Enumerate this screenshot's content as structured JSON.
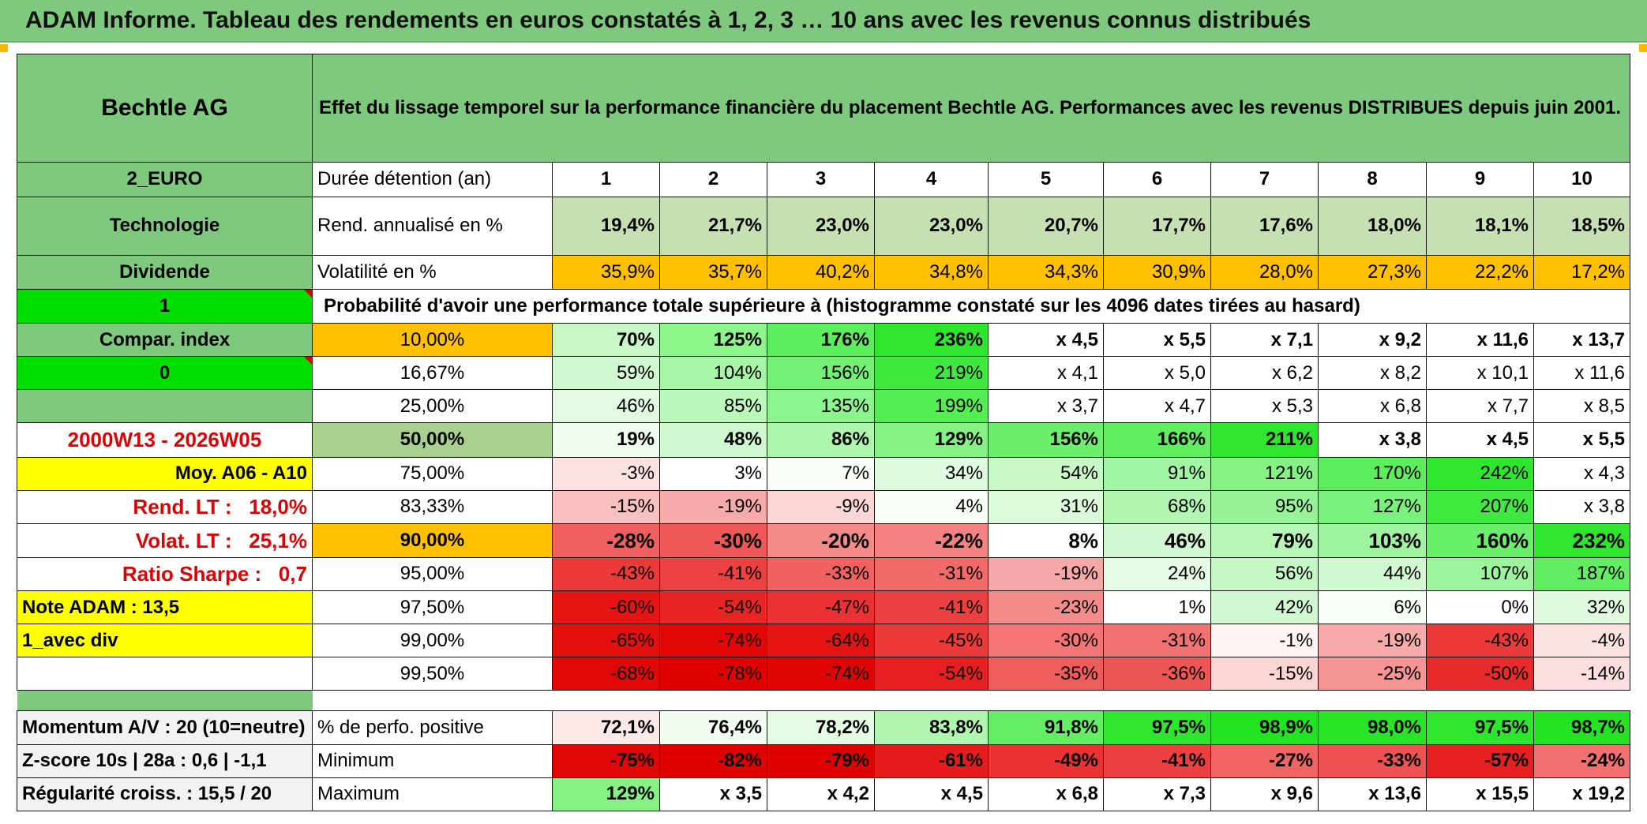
{
  "title": "ADAM Informe. Tableau des rendements en euros constatés à 1, 2, 3 … 10 ans avec les revenus connus distribués",
  "header": {
    "asset_name": "Bechtle AG",
    "description": "Effet du lissage temporel sur la performance financière du placement Bechtle AG. Performances avec les revenus DISTRIBUES depuis juin 2001."
  },
  "left_panel": {
    "currency": "2_EURO",
    "sector": "Technologie",
    "income_type": "Dividende",
    "index_flag": "1",
    "compar_index": "Compar. index",
    "compar_value": "0",
    "period": "2000W13 - 2026W05",
    "moy": "Moy. A06 - A10",
    "rend_lt_label": "Rend. LT :",
    "rend_lt_value": "18,0%",
    "volat_lt_label": "Volat. LT :",
    "volat_lt_value": "25,1%",
    "sharpe_label": "Ratio Sharpe :",
    "sharpe_value": "0,7",
    "note": "Note ADAM : 13,5",
    "mode": "1_avec div",
    "momentum": "Momentum A/V : 20 (10=neutre)",
    "zscore": "Z-score 10s | 28a : 0,6 | -1,1",
    "regularite": "Régularité croiss. : 15,5 / 20"
  },
  "row_labels": {
    "duration": "Durée détention (an)",
    "annualized": "Rend. annualisé en %",
    "volatility": "Volatilité en %",
    "probability": "Probabilité d'avoir une performance totale supérieure à (histogramme constaté sur les 4096 dates tirées au hasard)",
    "positive": "% de perfo. positive",
    "minimum": "Minimum",
    "maximum": "Maximum"
  },
  "years": [
    "1",
    "2",
    "3",
    "4",
    "5",
    "6",
    "7",
    "8",
    "9",
    "10"
  ],
  "annualized": [
    "19,4%",
    "21,7%",
    "23,0%",
    "23,0%",
    "20,7%",
    "17,7%",
    "17,6%",
    "18,0%",
    "18,1%",
    "18,5%"
  ],
  "volatility": [
    "35,9%",
    "35,7%",
    "40,2%",
    "34,8%",
    "34,3%",
    "30,9%",
    "28,0%",
    "27,3%",
    "22,2%",
    "17,2%"
  ],
  "quantiles": [
    {
      "label": "10,00%",
      "values": [
        "70%",
        "125%",
        "176%",
        "236%",
        "x 4,5",
        "x 5,5",
        "x 7,1",
        "x 9,2",
        "x 11,6",
        "x 13,7"
      ]
    },
    {
      "label": "16,67%",
      "values": [
        "59%",
        "104%",
        "156%",
        "219%",
        "x 4,1",
        "x 5,0",
        "x 6,2",
        "x 8,2",
        "x 10,1",
        "x 11,6"
      ]
    },
    {
      "label": "25,00%",
      "values": [
        "46%",
        "85%",
        "135%",
        "199%",
        "x 3,7",
        "x 4,7",
        "x 5,3",
        "x 6,8",
        "x 7,7",
        "x 8,5"
      ]
    },
    {
      "label": "50,00%",
      "values": [
        "19%",
        "48%",
        "86%",
        "129%",
        "156%",
        "166%",
        "211%",
        "x 3,8",
        "x 4,5",
        "x 5,5"
      ]
    },
    {
      "label": "75,00%",
      "values": [
        "-3%",
        "3%",
        "7%",
        "34%",
        "54%",
        "91%",
        "121%",
        "170%",
        "242%",
        "x 4,3"
      ]
    },
    {
      "label": "83,33%",
      "values": [
        "-15%",
        "-19%",
        "-9%",
        "4%",
        "31%",
        "68%",
        "95%",
        "127%",
        "207%",
        "x 3,8"
      ]
    },
    {
      "label": "90,00%",
      "values": [
        "-28%",
        "-30%",
        "-20%",
        "-22%",
        "8%",
        "46%",
        "79%",
        "103%",
        "160%",
        "232%"
      ]
    },
    {
      "label": "95,00%",
      "values": [
        "-43%",
        "-41%",
        "-33%",
        "-31%",
        "-19%",
        "24%",
        "56%",
        "44%",
        "107%",
        "187%"
      ]
    },
    {
      "label": "97,50%",
      "values": [
        "-60%",
        "-54%",
        "-47%",
        "-41%",
        "-23%",
        "1%",
        "42%",
        "6%",
        "0%",
        "32%"
      ]
    },
    {
      "label": "99,00%",
      "values": [
        "-65%",
        "-74%",
        "-64%",
        "-45%",
        "-30%",
        "-31%",
        "-1%",
        "-19%",
        "-43%",
        "-4%"
      ]
    },
    {
      "label": "99,50%",
      "values": [
        "-68%",
        "-78%",
        "-74%",
        "-54%",
        "-35%",
        "-36%",
        "-15%",
        "-25%",
        "-50%",
        "-14%"
      ]
    }
  ],
  "positive": [
    "72,1%",
    "76,4%",
    "78,2%",
    "83,8%",
    "91,8%",
    "97,5%",
    "98,9%",
    "98,0%",
    "97,5%",
    "98,7%"
  ],
  "minimum": [
    "-75%",
    "-82%",
    "-79%",
    "-61%",
    "-49%",
    "-41%",
    "-27%",
    "-33%",
    "-57%",
    "-24%"
  ],
  "maximum": [
    "129%",
    "x 3,5",
    "x 4,2",
    "x 4,5",
    "x 6,8",
    "x 7,3",
    "x 9,6",
    "x 13,6",
    "x 15,5",
    "x 19,2"
  ],
  "colors": {
    "header_green": "#7fc97f",
    "bright_green": "#00e000",
    "orange": "#ffc000",
    "yellow": "#ffff00",
    "label_red": "#e00000"
  }
}
